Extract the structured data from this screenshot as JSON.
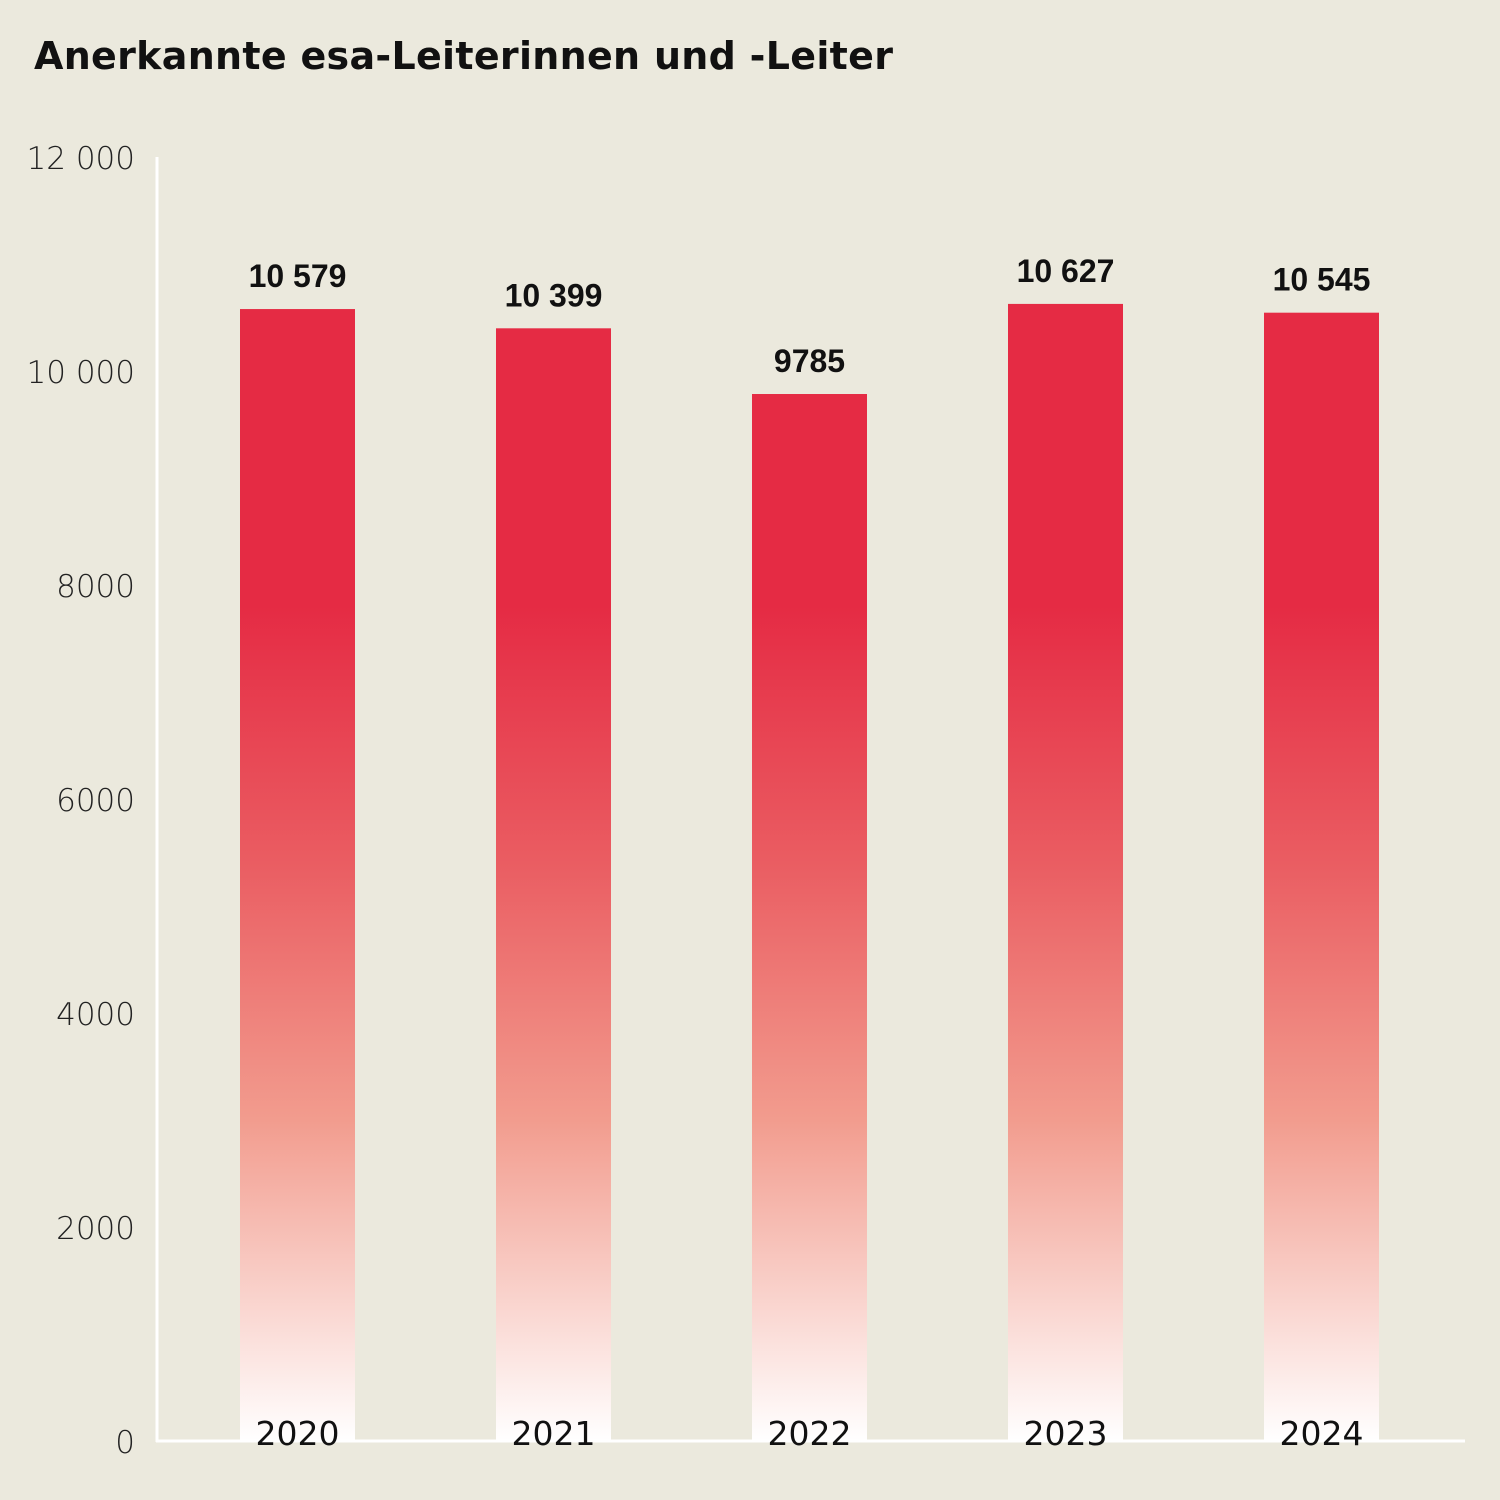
{
  "chart_data": {
    "type": "bar",
    "title": "Anerkannte esa-Leiterinnen und -Leiter",
    "categories": [
      "2020",
      "2021",
      "2022",
      "2023",
      "2024"
    ],
    "values": [
      10579,
      10399,
      9785,
      10627,
      10545
    ],
    "data_labels": [
      "10 579",
      "10 399",
      "9785",
      "10 627",
      "10 545"
    ],
    "ylim": [
      0,
      12000
    ],
    "y_ticks": [
      0,
      2000,
      4000,
      6000,
      8000,
      10000,
      12000
    ],
    "y_tick_labels": [
      "0",
      "2000",
      "4000",
      "6000",
      "8000",
      "10 000",
      "12 000"
    ],
    "xlabel": "",
    "ylabel": "",
    "grid": false,
    "colors": {
      "bar_top": "#e52b44",
      "bar_bottom": "#ffffff",
      "background": "#ebe9dd",
      "axis": "#ffffff"
    }
  }
}
